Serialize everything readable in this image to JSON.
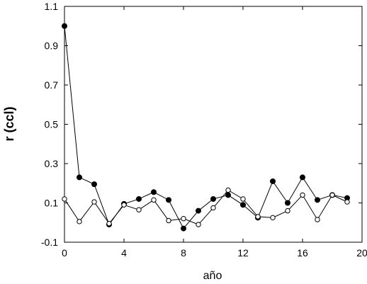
{
  "chart_data": {
    "type": "line",
    "title": "",
    "xlabel": "año",
    "ylabel": "r (ccl)",
    "xlim": [
      0,
      20
    ],
    "ylim": [
      -0.1,
      1.1
    ],
    "xticks": [
      0,
      4,
      8,
      12,
      16,
      20
    ],
    "yticks": [
      -0.1,
      0.1,
      0.3,
      0.5,
      0.7,
      0.9,
      1.1
    ],
    "xtick_labels": [
      "0",
      "4",
      "8",
      "12",
      "16",
      "20"
    ],
    "ytick_labels": [
      "-0.1",
      "0.1",
      "0.3",
      "0.5",
      "0.7",
      "0.9",
      "1.1"
    ],
    "grid": false,
    "legend": "none",
    "x": [
      0,
      1,
      2,
      3,
      4,
      5,
      6,
      7,
      8,
      9,
      10,
      11,
      12,
      13,
      14,
      15,
      16,
      17,
      18,
      19
    ],
    "series": [
      {
        "marker": "filled-circle",
        "color": "#000000",
        "values": [
          1.0,
          0.23,
          0.195,
          -0.01,
          0.095,
          0.12,
          0.155,
          0.115,
          -0.03,
          0.06,
          0.12,
          0.14,
          0.09,
          0.025,
          0.21,
          0.1,
          0.23,
          0.115,
          0.14,
          0.125
        ]
      },
      {
        "marker": "open-circle",
        "color": "#000000",
        "values": [
          0.12,
          0.005,
          0.105,
          -0.005,
          0.09,
          0.065,
          0.115,
          0.01,
          0.02,
          -0.01,
          0.075,
          0.165,
          0.12,
          0.03,
          0.025,
          0.06,
          0.14,
          0.015,
          0.14,
          0.105
        ]
      }
    ]
  }
}
